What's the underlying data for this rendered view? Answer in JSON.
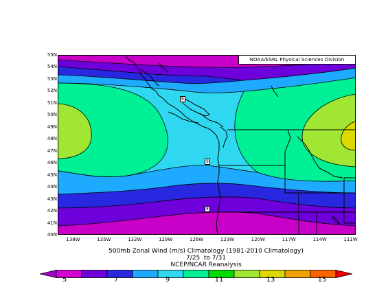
{
  "credit": "NOAA/ESRL Physical Sciences Division",
  "title_lines": [
    "500mb Zonal Wind (m/s) Climatology (1981-2010 Climatology)",
    "7/25  to 7/31",
    "NCEP/NCAR Reanalysis"
  ],
  "lat_labels": [
    "55N",
    "54N",
    "53N",
    "52N",
    "51N",
    "50N",
    "49N",
    "48N",
    "47N",
    "46N",
    "45N",
    "44N",
    "43N",
    "42N",
    "41N",
    "40N"
  ],
  "lon_labels": [
    "138W",
    "135W",
    "132W",
    "129W",
    "126W",
    "123W",
    "120W",
    "117W",
    "114W",
    "111W"
  ],
  "colorbar": {
    "tick_labels": [
      "5",
      "7",
      "9",
      "11",
      "13",
      "15"
    ],
    "bin_colors": [
      "#a000c8",
      "#d200d2",
      "#6e00dc",
      "#2828e0",
      "#1eaaff",
      "#2fd8f0",
      "#00f096",
      "#00dc00",
      "#a0e632",
      "#dcd800",
      "#f0a000",
      "#fa6400",
      "#f00000"
    ]
  },
  "contour_labels": [
    "8",
    "9",
    "8"
  ],
  "map": {
    "lat_range": [
      40,
      55
    ],
    "lon_range": [
      -139.5,
      -110.5
    ],
    "colors": {
      "lt5": "#a000c8",
      "c5_6": "#c800c8",
      "c6_7": "#6e00dc",
      "c7_8": "#2828e0",
      "c8_9": "#1eaaff",
      "c9_10": "#2fd8f0",
      "c10_11": "#00f096",
      "c11_12": "#a0e632",
      "c12_13": "#dcd800"
    }
  }
}
